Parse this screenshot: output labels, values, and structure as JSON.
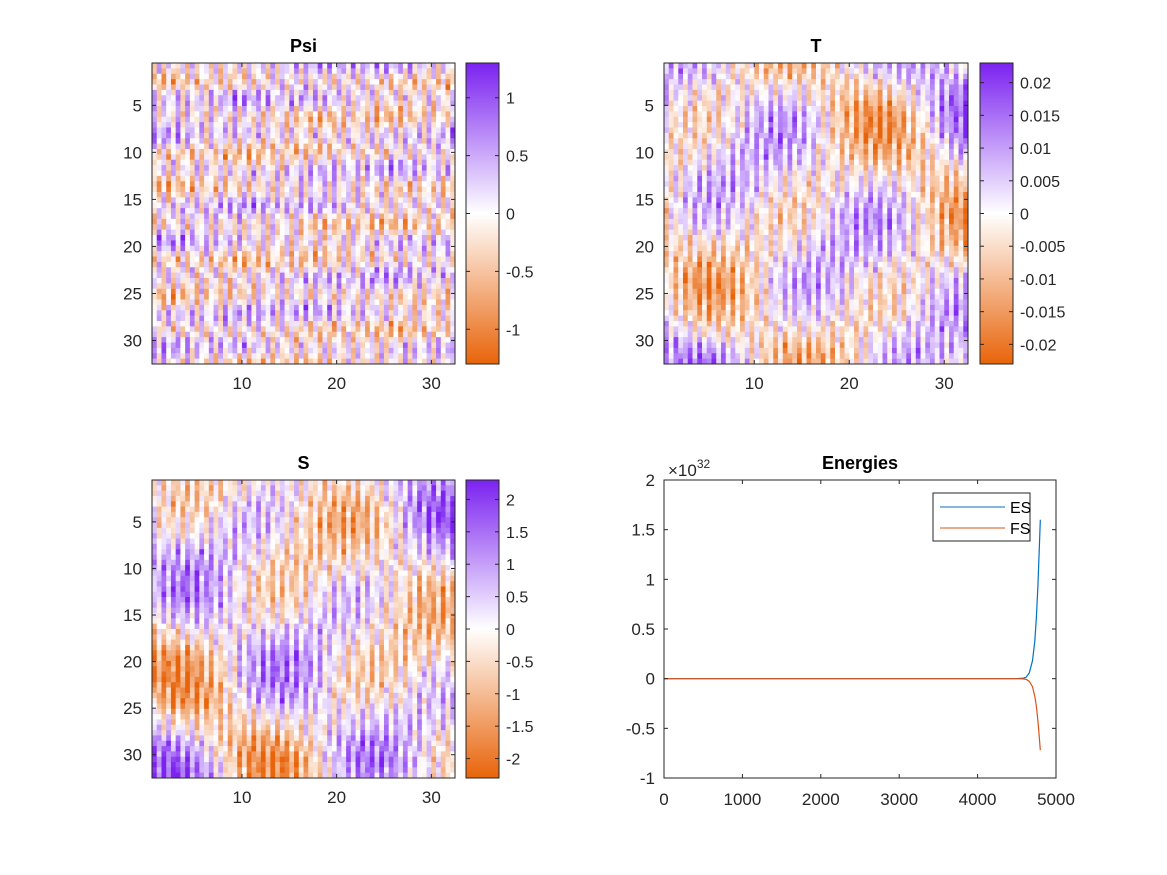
{
  "figure": {
    "colormap": {
      "negative": "#e8640a",
      "zero": "#ffffff",
      "positive": "#7b22f0"
    }
  },
  "chart_data": [
    {
      "type": "heatmap",
      "title": "Psi",
      "x_ticks": [
        "10",
        "20",
        "30"
      ],
      "y_ticks": [
        "5",
        "10",
        "15",
        "20",
        "25",
        "30"
      ],
      "xlim": [
        0.5,
        32.5
      ],
      "ylim": [
        0.5,
        32.5
      ],
      "y_reversed": true,
      "clim": [
        -1.3,
        1.3
      ],
      "colorbar_ticks": [
        "1",
        "0.5",
        "0",
        "-0.5",
        "-1"
      ],
      "pattern": "fine slanted wavy streaks alternating positive and negative across the whole field"
    },
    {
      "type": "heatmap",
      "title": "T",
      "x_ticks": [
        "10",
        "20",
        "30"
      ],
      "y_ticks": [
        "5",
        "10",
        "15",
        "20",
        "25",
        "30"
      ],
      "xlim": [
        0.5,
        32.5
      ],
      "ylim": [
        0.5,
        32.5
      ],
      "y_reversed": true,
      "clim": [
        -0.023,
        0.023
      ],
      "colorbar_ticks": [
        "0.02",
        "0.015",
        "0.01",
        "0.005",
        "0",
        "-0.005",
        "-0.01",
        "-0.015",
        "-0.02"
      ],
      "pattern": "wavy vertical streaks modulated by large-scale positive and negative patches"
    },
    {
      "type": "heatmap",
      "title": "S",
      "x_ticks": [
        "10",
        "20",
        "30"
      ],
      "y_ticks": [
        "5",
        "10",
        "15",
        "20",
        "25",
        "30"
      ],
      "xlim": [
        0.5,
        32.5
      ],
      "ylim": [
        0.5,
        32.5
      ],
      "y_reversed": true,
      "clim": [
        -2.3,
        2.3
      ],
      "colorbar_ticks": [
        "2",
        "1.5",
        "1",
        "0.5",
        "0",
        "-0.5",
        "-1",
        "-1.5",
        "-2"
      ],
      "pattern": "wavy vertical streaks modulated by large-scale positive and negative patches"
    },
    {
      "type": "line",
      "title": "Energies",
      "y_exponent_label": "×10",
      "y_exponent": "32",
      "xlim": [
        0,
        5000
      ],
      "ylim": [
        -1,
        2
      ],
      "x_ticks": [
        "0",
        "1000",
        "2000",
        "3000",
        "4000",
        "5000"
      ],
      "y_ticks": [
        "2",
        "1.5",
        "1",
        "0.5",
        "0",
        "-0.5",
        "-1"
      ],
      "legend_position": "top-right",
      "series": [
        {
          "name": "ES",
          "color": "#0072bd",
          "x": [
            0,
            500,
            1000,
            1500,
            2000,
            2500,
            3000,
            3500,
            4000,
            4300,
            4500,
            4580,
            4620,
            4660,
            4700,
            4730,
            4750,
            4770,
            4790,
            4800
          ],
          "y": [
            0,
            0,
            0,
            0,
            0,
            0,
            0,
            0,
            0,
            0,
            0.0005,
            0.004,
            0.015,
            0.06,
            0.18,
            0.38,
            0.62,
            0.95,
            1.38,
            1.6
          ]
        },
        {
          "name": "FS",
          "color": "#d95319",
          "x": [
            0,
            500,
            1000,
            1500,
            2000,
            2500,
            3000,
            3500,
            4000,
            4300,
            4500,
            4580,
            4620,
            4660,
            4700,
            4730,
            4750,
            4770,
            4790,
            4800
          ],
          "y": [
            0,
            0,
            0,
            0,
            0,
            0,
            0,
            0,
            0,
            0,
            -0.0003,
            -0.002,
            -0.007,
            -0.028,
            -0.08,
            -0.18,
            -0.28,
            -0.43,
            -0.62,
            -0.72
          ]
        }
      ]
    }
  ]
}
